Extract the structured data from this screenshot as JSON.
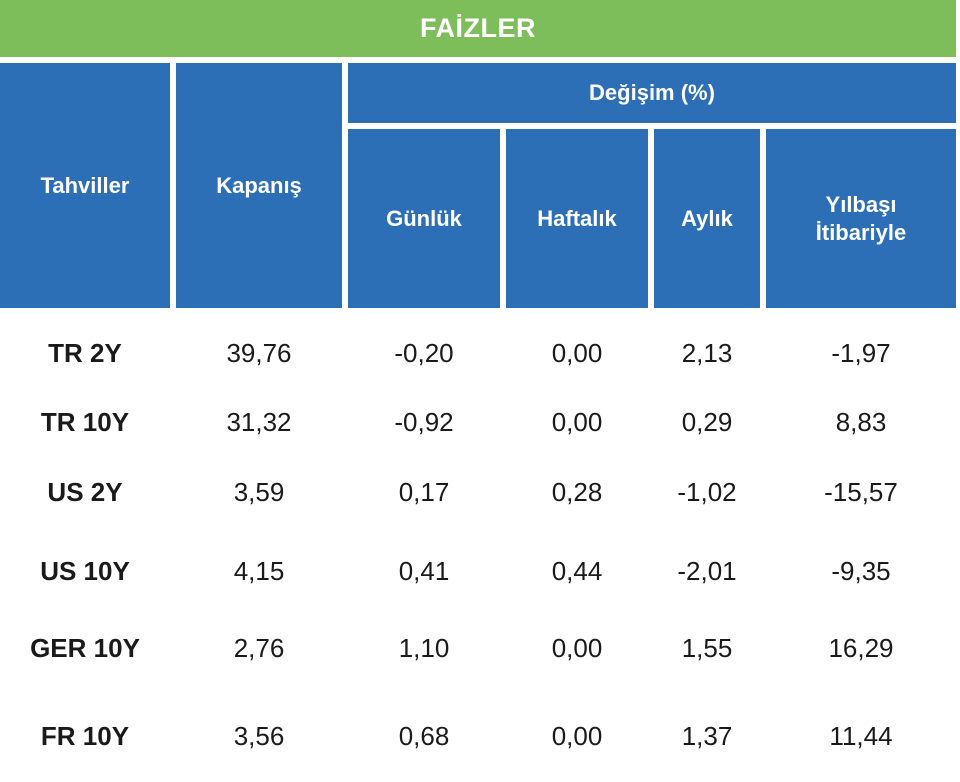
{
  "title": "FAİZLER",
  "header": {
    "bonds": "Tahviller",
    "close": "Kapanış",
    "change_group": "Değişim (%)",
    "daily": "Günlük",
    "weekly": "Haftalık",
    "monthly": "Aylık",
    "ytd_line1": "Yılbaşı",
    "ytd_line2": "İtibariyle"
  },
  "rows": [
    {
      "name": "TR 2Y",
      "close": "39,76",
      "daily": "-0,20",
      "weekly": "0,00",
      "monthly": "2,13",
      "ytd": "-1,97"
    },
    {
      "name": "TR 10Y",
      "close": "31,32",
      "daily": "-0,92",
      "weekly": "0,00",
      "monthly": "0,29",
      "ytd": "8,83"
    },
    {
      "name": "US 2Y",
      "close": "3,59",
      "daily": "0,17",
      "weekly": "0,28",
      "monthly": "-1,02",
      "ytd": "-15,57"
    },
    {
      "name": "US 10Y",
      "close": "4,15",
      "daily": "0,41",
      "weekly": "0,44",
      "monthly": "-2,01",
      "ytd": "-9,35"
    },
    {
      "name": "GER 10Y",
      "close": "2,76",
      "daily": "1,10",
      "weekly": "0,00",
      "monthly": "1,55",
      "ytd": "16,29"
    },
    {
      "name": "FR 10Y",
      "close": "3,56",
      "daily": "0,68",
      "weekly": "0,00",
      "monthly": "1,37",
      "ytd": "11,44"
    }
  ],
  "colors": {
    "title_bg": "#7dbd5a",
    "header_bg": "#2d6fb7",
    "header_text": "#ffffff"
  }
}
